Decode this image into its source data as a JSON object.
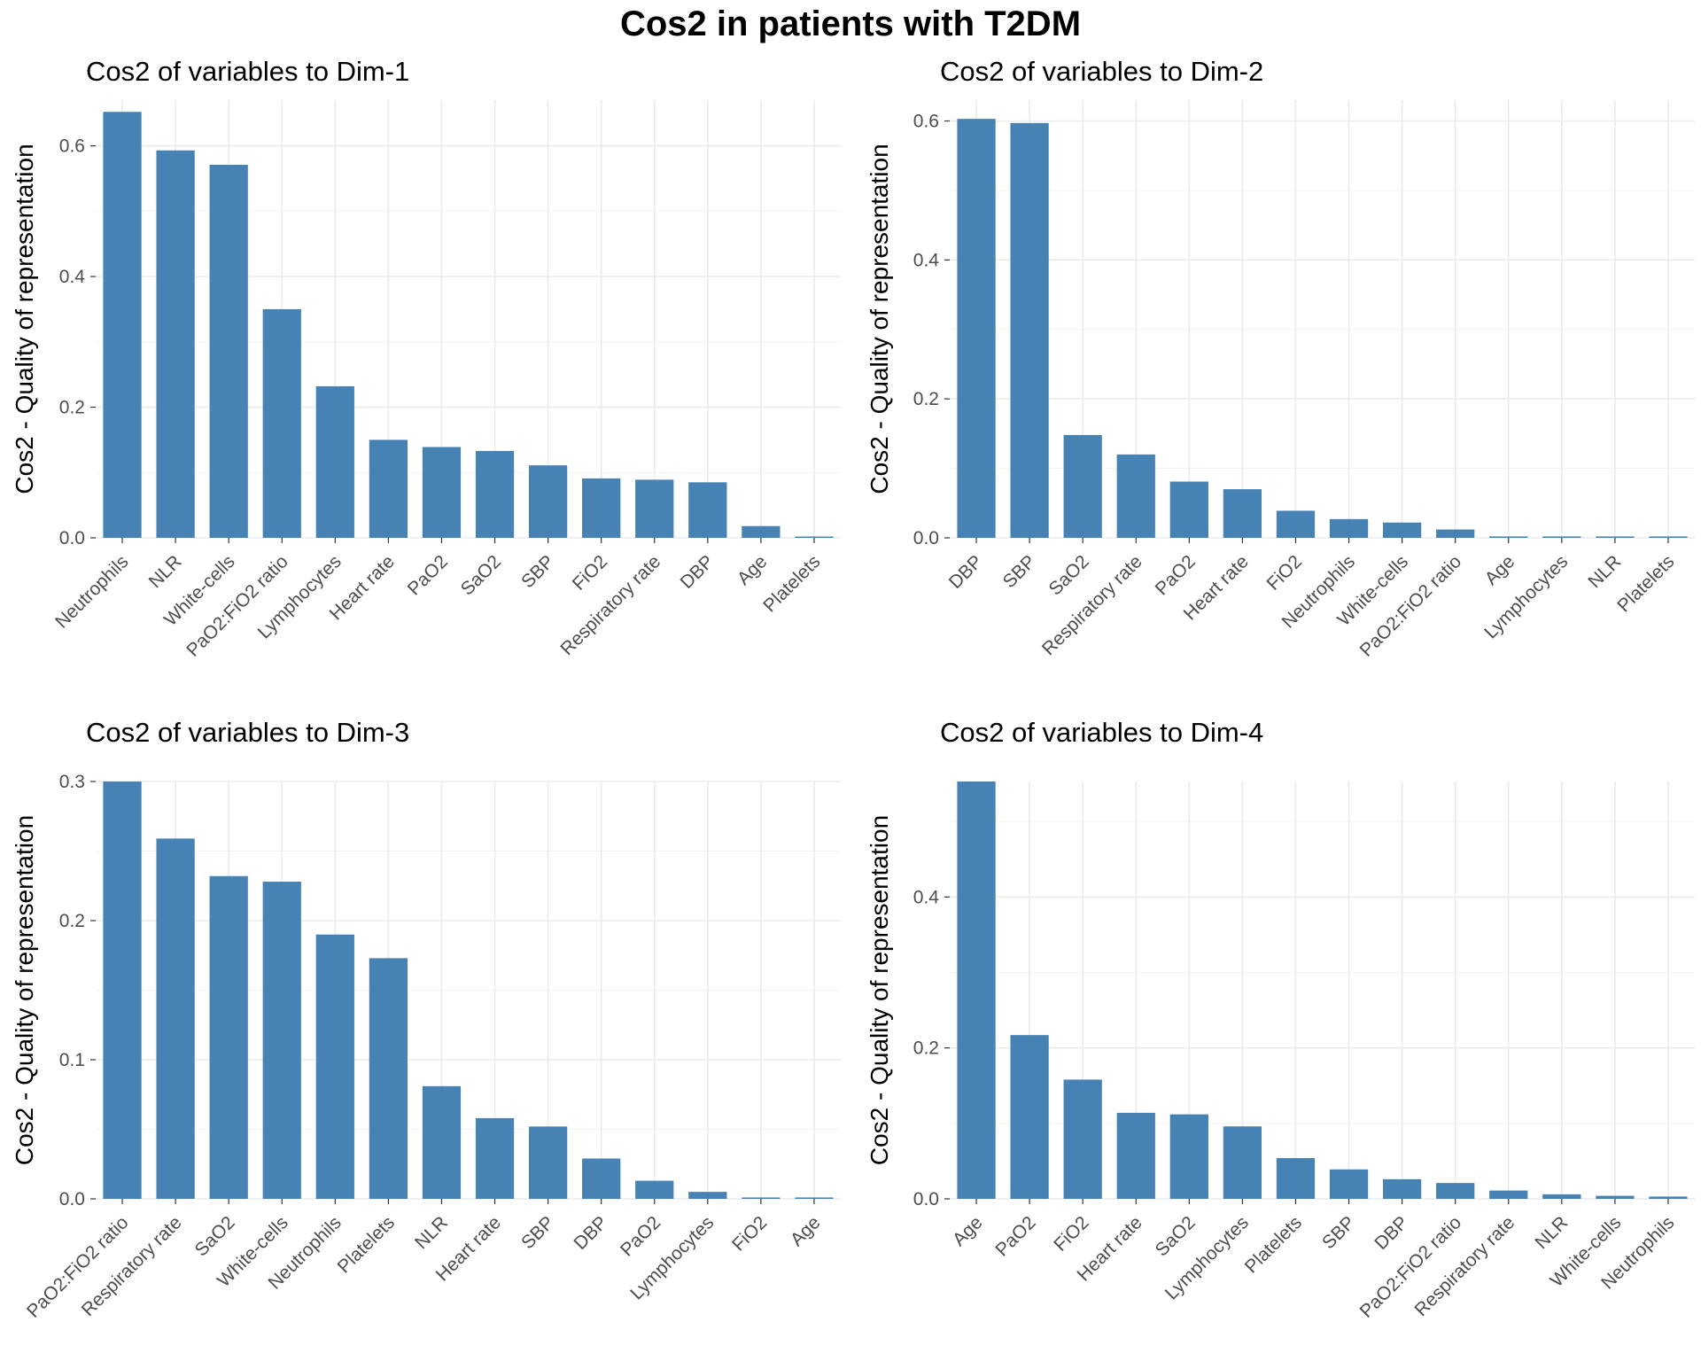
{
  "title": "Cos2 in patients with T2DM",
  "colors": {
    "bar": "#4682b4",
    "grid": "#ebebeb",
    "text": "#4d4d4d"
  },
  "chart_data": [
    {
      "type": "bar",
      "title": "Cos2 of variables to Dim-1",
      "ylabel": "Cos2 - Quality of representation",
      "xlabel": "",
      "ylim": [
        0,
        0.67
      ],
      "yticks": [
        0,
        0.2,
        0.4,
        0.6
      ],
      "ytick_labels": [
        "0.0",
        "0.2",
        "0.4",
        "0.6"
      ],
      "grid": true,
      "categories": [
        "Neutrophils",
        "NLR",
        "White-cells",
        "PaO2:FiO2 ratio",
        "Lymphocytes",
        "Heart rate",
        "PaO2",
        "SaO2",
        "SBP",
        "FiO2",
        "Respiratory rate",
        "DBP",
        "Age",
        "Platelets"
      ],
      "values": [
        0.652,
        0.593,
        0.571,
        0.35,
        0.232,
        0.15,
        0.139,
        0.133,
        0.111,
        0.091,
        0.089,
        0.085,
        0.018,
        0.002
      ]
    },
    {
      "type": "bar",
      "title": "Cos2 of variables to Dim-2",
      "ylabel": "Cos2 - Quality of representation",
      "xlabel": "",
      "ylim": [
        0,
        0.63
      ],
      "yticks": [
        0,
        0.2,
        0.4,
        0.6
      ],
      "ytick_labels": [
        "0.0",
        "0.2",
        "0.4",
        "0.6"
      ],
      "grid": true,
      "categories": [
        "DBP",
        "SBP",
        "SaO2",
        "Respiratory rate",
        "PaO2",
        "Heart rate",
        "FiO2",
        "Neutrophils",
        "White-cells",
        "PaO2:FiO2 ratio",
        "Age",
        "Lymphocytes",
        "NLR",
        "Platelets"
      ],
      "values": [
        0.603,
        0.597,
        0.148,
        0.12,
        0.081,
        0.07,
        0.039,
        0.027,
        0.022,
        0.012,
        0.002,
        0.002,
        0.002,
        0.002
      ]
    },
    {
      "type": "bar",
      "title": "Cos2 of variables to Dim-3",
      "ylabel": "Cos2 - Quality of representation",
      "xlabel": "",
      "ylim": [
        0,
        0.3
      ],
      "yticks": [
        0,
        0.1,
        0.2,
        0.3
      ],
      "ytick_labels": [
        "0.0",
        "0.1",
        "0.2",
        "0.3"
      ],
      "grid": true,
      "categories": [
        "PaO2:FiO2 ratio",
        "Respiratory rate",
        "SaO2",
        "White-cells",
        "Neutrophils",
        "Platelets",
        "NLR",
        "Heart rate",
        "SBP",
        "DBP",
        "PaO2",
        "Lymphocytes",
        "FiO2",
        "Age"
      ],
      "values": [
        0.3,
        0.259,
        0.232,
        0.228,
        0.19,
        0.173,
        0.081,
        0.058,
        0.052,
        0.029,
        0.013,
        0.005,
        0.001,
        0.001
      ]
    },
    {
      "type": "bar",
      "title": "Cos2 of variables to Dim-4",
      "ylabel": "Cos2 - Quality of representation",
      "xlabel": "",
      "ylim": [
        0,
        0.553
      ],
      "yticks": [
        0,
        0.2,
        0.4
      ],
      "ytick_labels": [
        "0.0",
        "0.2",
        "0.4"
      ],
      "grid": true,
      "categories": [
        "Age",
        "PaO2",
        "FiO2",
        "Heart rate",
        "SaO2",
        "Lymphocytes",
        "Platelets",
        "SBP",
        "DBP",
        "PaO2:FiO2 ratio",
        "Respiratory rate",
        "NLR",
        "White-cells",
        "Neutrophils"
      ],
      "values": [
        0.553,
        0.217,
        0.158,
        0.114,
        0.112,
        0.096,
        0.054,
        0.039,
        0.026,
        0.021,
        0.011,
        0.006,
        0.004,
        0.003
      ]
    }
  ]
}
